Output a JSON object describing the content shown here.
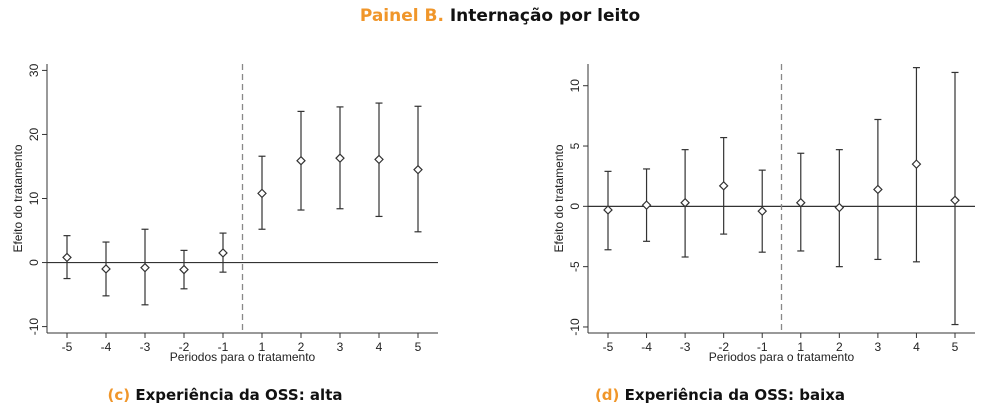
{
  "header": {
    "prefix": "Painel B.",
    "title": "Internação por leito"
  },
  "colors": {
    "accent": "#f0962a",
    "text": "#111111",
    "line": "#333333",
    "dashed": "#888888"
  },
  "chart_data": [
    {
      "type": "scatter",
      "subtitle_prefix": "(c)",
      "subtitle": "Experiência da OSS: alta",
      "xlabel": "Periodos para o tratamento",
      "ylabel": "Efeito do tratamento",
      "x": [
        -5,
        -4,
        -3,
        -2,
        -1,
        1,
        2,
        3,
        4,
        5
      ],
      "x_ticks": [
        "-5",
        "-4",
        "-3",
        "-2",
        "-1",
        "1",
        "2",
        "3",
        "4",
        "5"
      ],
      "y": [
        0.8,
        -1.0,
        -0.8,
        -1.1,
        1.5,
        10.8,
        15.9,
        16.3,
        16.1,
        14.5
      ],
      "ci_low": [
        -2.5,
        -5.2,
        -6.6,
        -4.1,
        -1.5,
        5.2,
        8.2,
        8.4,
        7.2,
        4.8
      ],
      "ci_high": [
        4.2,
        3.2,
        5.2,
        1.9,
        4.6,
        16.6,
        23.6,
        24.3,
        24.9,
        24.4
      ],
      "y_ticks": [
        -10,
        0,
        10,
        20,
        30
      ],
      "ylim": [
        -11,
        31
      ],
      "reference_line_y": 0,
      "treatment_line": "between -1 and 1",
      "grid": false
    },
    {
      "type": "scatter",
      "subtitle_prefix": "(d)",
      "subtitle": "Experiência da OSS: baixa",
      "xlabel": "Periodos para o tratamento",
      "ylabel": "Efeito do tratamento",
      "x": [
        -5,
        -4,
        -3,
        -2,
        -1,
        1,
        2,
        3,
        4,
        5
      ],
      "x_ticks": [
        "-5",
        "-4",
        "-3",
        "-2",
        "-1",
        "1",
        "2",
        "3",
        "4",
        "5"
      ],
      "y": [
        -0.3,
        0.1,
        0.3,
        1.7,
        -0.4,
        0.3,
        -0.1,
        1.4,
        3.5,
        0.5
      ],
      "ci_low": [
        -3.6,
        -2.9,
        -4.2,
        -2.3,
        -3.8,
        -3.7,
        -5.0,
        -4.4,
        -4.6,
        -9.8
      ],
      "ci_high": [
        2.9,
        3.1,
        4.7,
        5.7,
        3.0,
        4.4,
        4.7,
        7.2,
        11.5,
        11.1
      ],
      "y_ticks": [
        -10,
        -5,
        0,
        5,
        10
      ],
      "ylim": [
        -10.5,
        11.8
      ],
      "reference_line_y": 0,
      "treatment_line": "between -1 and 1",
      "grid": false
    }
  ]
}
